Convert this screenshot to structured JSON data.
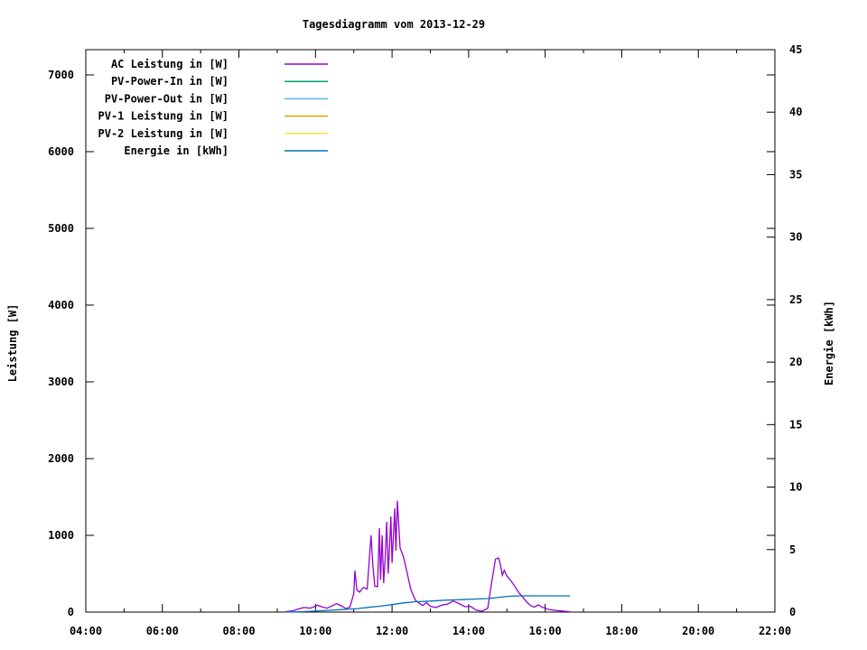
{
  "chart_data": {
    "type": "line",
    "title": "Tagesdiagramm vom 2013-12-29",
    "x_axis": {
      "ticks": [
        {
          "h": 4,
          "label": "04:00"
        },
        {
          "h": 6,
          "label": "06:00"
        },
        {
          "h": 8,
          "label": "08:00"
        },
        {
          "h": 10,
          "label": "10:00"
        },
        {
          "h": 12,
          "label": "12:00"
        },
        {
          "h": 14,
          "label": "14:00"
        },
        {
          "h": 16,
          "label": "16:00"
        },
        {
          "h": 18,
          "label": "18:00"
        },
        {
          "h": 20,
          "label": "20:00"
        },
        {
          "h": 22,
          "label": "22:00"
        }
      ],
      "minor_hours": [
        5,
        7,
        9,
        11,
        13,
        15,
        17,
        19,
        21
      ],
      "range_hours": [
        4,
        22
      ]
    },
    "y_left": {
      "label": "Leistung [W]",
      "ticks": [
        0,
        1000,
        2000,
        3000,
        4000,
        5000,
        6000,
        7000
      ],
      "range": [
        0,
        7329
      ]
    },
    "y_right": {
      "label": "Energie [kWh]",
      "ticks": [
        0,
        5,
        10,
        15,
        20,
        25,
        30,
        35,
        40,
        45
      ],
      "range": [
        0,
        45
      ]
    },
    "legend": [
      {
        "label": "AC Leistung in [W]",
        "color": "#9400D3"
      },
      {
        "label": "PV-Power-In in [W]",
        "color": "#009E73"
      },
      {
        "label": "PV-Power-Out in [W]",
        "color": "#56B4E9"
      },
      {
        "label": "PV-1 Leistung in [W]",
        "color": "#E69F00"
      },
      {
        "label": "PV-2 Leistung in [W]",
        "color": "#F0E442"
      },
      {
        "label": "Energie in [kWh]",
        "color": "#0072B2"
      }
    ],
    "series": [
      {
        "name": "AC Leistung in [W]",
        "axis": "left",
        "color": "#9400D3",
        "points": [
          [
            9.2,
            5
          ],
          [
            9.4,
            15
          ],
          [
            9.55,
            40
          ],
          [
            9.7,
            60
          ],
          [
            9.85,
            50
          ],
          [
            9.95,
            65
          ],
          [
            10.05,
            90
          ],
          [
            10.15,
            70
          ],
          [
            10.3,
            50
          ],
          [
            10.45,
            85
          ],
          [
            10.55,
            110
          ],
          [
            10.7,
            75
          ],
          [
            10.8,
            45
          ],
          [
            10.9,
            65
          ],
          [
            11.0,
            240
          ],
          [
            11.03,
            540
          ],
          [
            11.08,
            290
          ],
          [
            11.15,
            260
          ],
          [
            11.25,
            320
          ],
          [
            11.35,
            300
          ],
          [
            11.45,
            1000
          ],
          [
            11.5,
            600
          ],
          [
            11.55,
            340
          ],
          [
            11.62,
            330
          ],
          [
            11.67,
            1094
          ],
          [
            11.7,
            420
          ],
          [
            11.74,
            1000
          ],
          [
            11.78,
            380
          ],
          [
            11.82,
            700
          ],
          [
            11.86,
            1176
          ],
          [
            11.9,
            500
          ],
          [
            11.97,
            1247
          ],
          [
            12.0,
            640
          ],
          [
            12.07,
            1353
          ],
          [
            12.1,
            800
          ],
          [
            12.14,
            1450
          ],
          [
            12.21,
            835
          ],
          [
            12.3,
            718
          ],
          [
            12.37,
            565
          ],
          [
            12.49,
            294
          ],
          [
            12.61,
            153
          ],
          [
            12.7,
            120
          ],
          [
            12.8,
            85
          ],
          [
            12.9,
            125
          ],
          [
            13.0,
            75
          ],
          [
            13.15,
            60
          ],
          [
            13.3,
            90
          ],
          [
            13.45,
            105
          ],
          [
            13.6,
            145
          ],
          [
            13.75,
            110
          ],
          [
            13.9,
            70
          ],
          [
            14.05,
            75
          ],
          [
            14.2,
            25
          ],
          [
            14.35,
            10
          ],
          [
            14.5,
            50
          ],
          [
            14.6,
            380
          ],
          [
            14.7,
            690
          ],
          [
            14.78,
            706
          ],
          [
            14.83,
            620
          ],
          [
            14.88,
            480
          ],
          [
            14.93,
            545
          ],
          [
            15.0,
            470
          ],
          [
            15.1,
            412
          ],
          [
            15.2,
            340
          ],
          [
            15.3,
            260
          ],
          [
            15.42,
            190
          ],
          [
            15.52,
            130
          ],
          [
            15.62,
            85
          ],
          [
            15.72,
            65
          ],
          [
            15.82,
            95
          ],
          [
            15.92,
            65
          ],
          [
            16.05,
            40
          ],
          [
            16.2,
            25
          ],
          [
            16.4,
            15
          ],
          [
            16.65,
            5
          ]
        ]
      },
      {
        "name": "PV-Power-In in [W]",
        "axis": "left",
        "color": "#009E73",
        "points": []
      },
      {
        "name": "PV-Power-Out in [W]",
        "axis": "left",
        "color": "#56B4E9",
        "points": []
      },
      {
        "name": "PV-1 Leistung in [W]",
        "axis": "left",
        "color": "#E69F00",
        "points": []
      },
      {
        "name": "PV-2 Leistung in [W]",
        "axis": "left",
        "color": "#F0E442",
        "points": []
      },
      {
        "name": "Energie in [kWh]",
        "axis": "right",
        "color": "#0072B2",
        "points": [
          [
            9.2,
            0
          ],
          [
            9.6,
            0.03
          ],
          [
            10.0,
            0.08
          ],
          [
            10.4,
            0.15
          ],
          [
            10.8,
            0.22
          ],
          [
            11.1,
            0.28
          ],
          [
            11.4,
            0.38
          ],
          [
            11.7,
            0.48
          ],
          [
            12.0,
            0.6
          ],
          [
            12.3,
            0.74
          ],
          [
            12.6,
            0.82
          ],
          [
            13.0,
            0.88
          ],
          [
            13.4,
            0.95
          ],
          [
            13.8,
            1.0
          ],
          [
            14.2,
            1.05
          ],
          [
            14.5,
            1.08
          ],
          [
            14.7,
            1.15
          ],
          [
            14.9,
            1.22
          ],
          [
            15.1,
            1.27
          ],
          [
            15.4,
            1.3
          ],
          [
            16.0,
            1.3
          ],
          [
            16.65,
            1.3
          ]
        ]
      }
    ]
  }
}
